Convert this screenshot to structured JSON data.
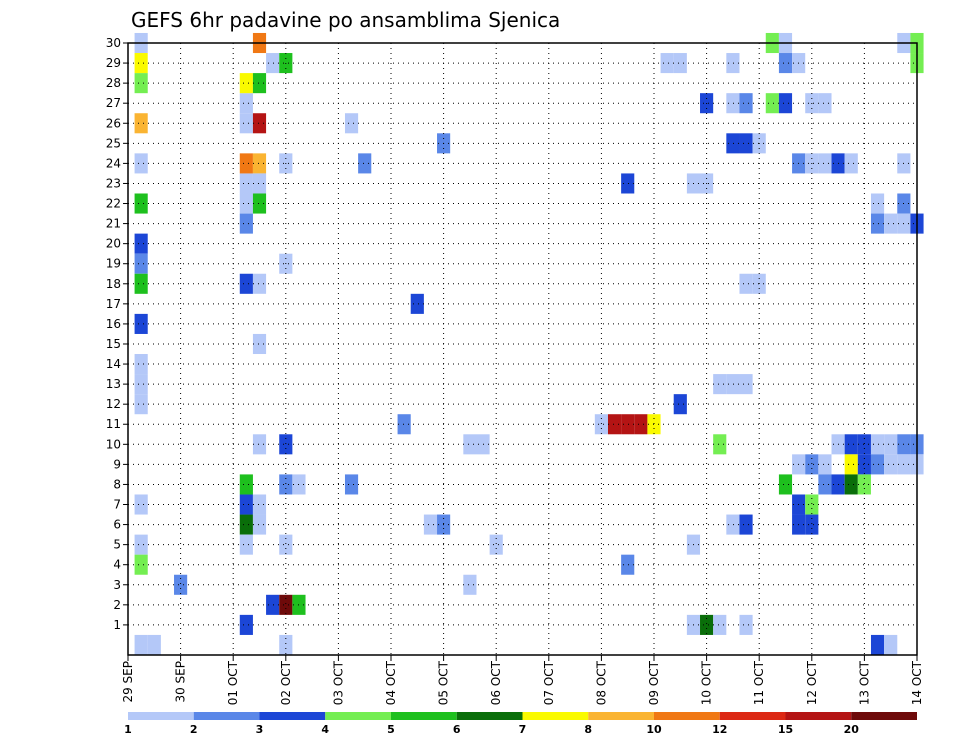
{
  "chart_data": {
    "type": "heatmap",
    "title": "GEFS 6hr padavine po ansamblima Sjenica",
    "xlabel": "",
    "ylabel": "",
    "x_ticks": [
      "29 SEP",
      "30 SEP",
      "01 OCT",
      "02 OCT",
      "03 OCT",
      "04 OCT",
      "05 OCT",
      "06 OCT",
      "07 OCT",
      "08 OCT",
      "09 OCT",
      "10 OCT",
      "11 OCT",
      "12 OCT",
      "13 OCT",
      "14 OCT"
    ],
    "xlim": [
      0,
      60
    ],
    "y_ticks": [
      1,
      2,
      3,
      4,
      5,
      6,
      7,
      8,
      9,
      10,
      11,
      12,
      13,
      14,
      15,
      16,
      17,
      18,
      19,
      20,
      21,
      22,
      23,
      24,
      25,
      26,
      27,
      28,
      29,
      30
    ],
    "ylim": [
      0,
      30
    ],
    "grid": true,
    "colorbar": {
      "labels": [
        "1",
        "2",
        "3",
        "4",
        "5",
        "6",
        "7",
        "8",
        "10",
        "12",
        "15",
        "20"
      ],
      "colors": [
        "#b4c8f8",
        "#5a87e8",
        "#1c46d6",
        "#74ee52",
        "#1ec01e",
        "#0a6e0a",
        "#fafa00",
        "#fab432",
        "#f07814",
        "#dc2814",
        "#b41414",
        "#6e0a0a"
      ]
    },
    "cells": [
      [
        1,
        30,
        1
      ],
      [
        1,
        29,
        7
      ],
      [
        1,
        28,
        4
      ],
      [
        1,
        26,
        8
      ],
      [
        1,
        24,
        1
      ],
      [
        1,
        22,
        5
      ],
      [
        1,
        20,
        3
      ],
      [
        1,
        19,
        2
      ],
      [
        1,
        18,
        5
      ],
      [
        1,
        16,
        3
      ],
      [
        1,
        14,
        1
      ],
      [
        1,
        13,
        1
      ],
      [
        1,
        12,
        1
      ],
      [
        1,
        7,
        1
      ],
      [
        1,
        5,
        1
      ],
      [
        1,
        4,
        4
      ],
      [
        1,
        0,
        1
      ],
      [
        2,
        0,
        1
      ],
      [
        4,
        3,
        2
      ],
      [
        9,
        6,
        6
      ],
      [
        9,
        7,
        3
      ],
      [
        9,
        8,
        5
      ],
      [
        9,
        5,
        1
      ],
      [
        9,
        1,
        3
      ],
      [
        9,
        18,
        3
      ],
      [
        9,
        21,
        2
      ],
      [
        9,
        22,
        1
      ],
      [
        9,
        23,
        1
      ],
      [
        9,
        24,
        9
      ],
      [
        9,
        26,
        1
      ],
      [
        9,
        27,
        1
      ],
      [
        9,
        28,
        7
      ],
      [
        10,
        30,
        9
      ],
      [
        10,
        28,
        5
      ],
      [
        10,
        26,
        11
      ],
      [
        10,
        24,
        8
      ],
      [
        10,
        23,
        1
      ],
      [
        10,
        22,
        5
      ],
      [
        10,
        18,
        1
      ],
      [
        10,
        15,
        1
      ],
      [
        10,
        10,
        1
      ],
      [
        10,
        7,
        1
      ],
      [
        10,
        6,
        1
      ],
      [
        11,
        29,
        1
      ],
      [
        11,
        2,
        3
      ],
      [
        12,
        29,
        5
      ],
      [
        12,
        24,
        1
      ],
      [
        12,
        19,
        1
      ],
      [
        12,
        10,
        3
      ],
      [
        12,
        8,
        2
      ],
      [
        12,
        5,
        1
      ],
      [
        12,
        2,
        12
      ],
      [
        12,
        0,
        1
      ],
      [
        13,
        8,
        1
      ],
      [
        13,
        2,
        5
      ],
      [
        17,
        26,
        1
      ],
      [
        17,
        8,
        2
      ],
      [
        18,
        24,
        2
      ],
      [
        21,
        11,
        2
      ],
      [
        22,
        17,
        3
      ],
      [
        23,
        6,
        1
      ],
      [
        24,
        25,
        2
      ],
      [
        24,
        6,
        2
      ],
      [
        26,
        10,
        1
      ],
      [
        26,
        3,
        1
      ],
      [
        27,
        10,
        1
      ],
      [
        28,
        5,
        1
      ],
      [
        36,
        11,
        1
      ],
      [
        37,
        11,
        11
      ],
      [
        38,
        11,
        11
      ],
      [
        38,
        23,
        3
      ],
      [
        38,
        4,
        2
      ],
      [
        39,
        11,
        11
      ],
      [
        40,
        11,
        7
      ],
      [
        41,
        29,
        1
      ],
      [
        42,
        29,
        1
      ],
      [
        42,
        12,
        3
      ],
      [
        43,
        23,
        1
      ],
      [
        43,
        1,
        1
      ],
      [
        43,
        5,
        1
      ],
      [
        44,
        23,
        1
      ],
      [
        44,
        27,
        3
      ],
      [
        44,
        1,
        6
      ],
      [
        45,
        13,
        1
      ],
      [
        45,
        10,
        4
      ],
      [
        45,
        1,
        1
      ],
      [
        46,
        29,
        1
      ],
      [
        46,
        27,
        1
      ],
      [
        46,
        25,
        3
      ],
      [
        46,
        13,
        1
      ],
      [
        46,
        6,
        1
      ],
      [
        47,
        27,
        2
      ],
      [
        47,
        25,
        3
      ],
      [
        47,
        18,
        1
      ],
      [
        47,
        13,
        1
      ],
      [
        47,
        6,
        3
      ],
      [
        47,
        1,
        1
      ],
      [
        48,
        25,
        1
      ],
      [
        48,
        18,
        1
      ],
      [
        49,
        30,
        4
      ],
      [
        49,
        27,
        4
      ],
      [
        50,
        30,
        1
      ],
      [
        50,
        29,
        2
      ],
      [
        50,
        27,
        3
      ],
      [
        50,
        8,
        5
      ],
      [
        51,
        29,
        1
      ],
      [
        51,
        24,
        2
      ],
      [
        51,
        9,
        1
      ],
      [
        51,
        7,
        3
      ],
      [
        51,
        6,
        3
      ],
      [
        52,
        24,
        1
      ],
      [
        52,
        27,
        1
      ],
      [
        52,
        9,
        2
      ],
      [
        52,
        7,
        4
      ],
      [
        52,
        6,
        3
      ],
      [
        53,
        24,
        1
      ],
      [
        53,
        27,
        1
      ],
      [
        53,
        9,
        1
      ],
      [
        53,
        8,
        2
      ],
      [
        54,
        24,
        3
      ],
      [
        54,
        10,
        1
      ],
      [
        54,
        8,
        3
      ],
      [
        55,
        24,
        1
      ],
      [
        55,
        10,
        3
      ],
      [
        55,
        9,
        7
      ],
      [
        55,
        8,
        6
      ],
      [
        56,
        10,
        3
      ],
      [
        56,
        9,
        3
      ],
      [
        56,
        8,
        4
      ],
      [
        57,
        22,
        1
      ],
      [
        57,
        21,
        2
      ],
      [
        57,
        10,
        1
      ],
      [
        57,
        9,
        2
      ],
      [
        57,
        0,
        3
      ],
      [
        58,
        21,
        1
      ],
      [
        58,
        10,
        1
      ],
      [
        58,
        9,
        1
      ],
      [
        58,
        0,
        1
      ],
      [
        59,
        30,
        1
      ],
      [
        59,
        24,
        1
      ],
      [
        59,
        22,
        2
      ],
      [
        59,
        21,
        1
      ],
      [
        59,
        10,
        2
      ],
      [
        59,
        9,
        1
      ],
      [
        60,
        30,
        4
      ],
      [
        60,
        29,
        4
      ],
      [
        60,
        21,
        3
      ],
      [
        60,
        10,
        2
      ],
      [
        60,
        9,
        1
      ]
    ]
  }
}
